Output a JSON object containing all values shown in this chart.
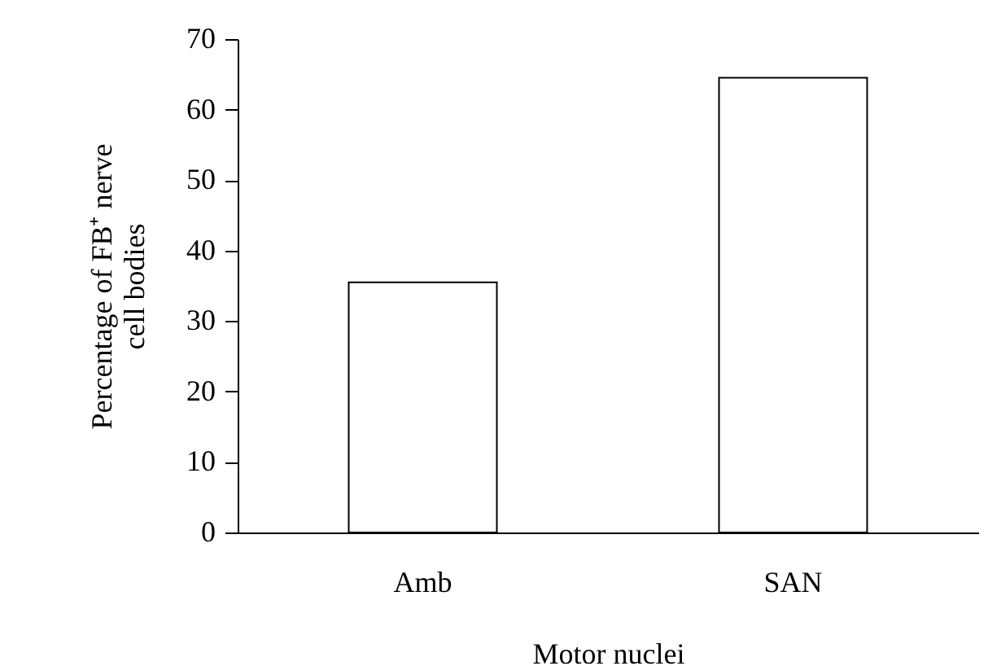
{
  "chart_data": {
    "type": "bar",
    "xlabel": "Motor nuclei",
    "ylabel": "Percentage of FB⁺ nerve cell bodies",
    "categories": [
      "Amb",
      "SAN"
    ],
    "values": [
      35.5,
      64.5
    ],
    "color": "#ffffff",
    "ylim": [
      0,
      70
    ],
    "yticks": [
      0,
      10,
      20,
      30,
      40,
      50,
      60,
      70
    ],
    "grid": false
  }
}
